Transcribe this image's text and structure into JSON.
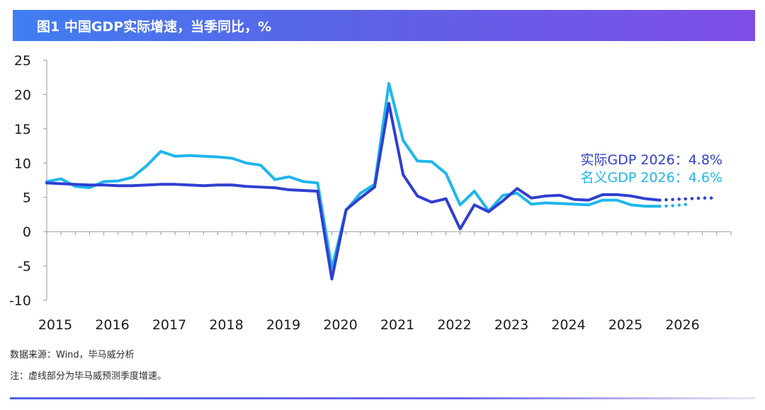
{
  "header": {
    "title": "图1 中国GDP实际增速，当季同比，%"
  },
  "chart_data": {
    "type": "line",
    "title": "图1 中国GDP实际增速，当季同比，%",
    "ylim": [
      -10,
      25
    ],
    "yticks": [
      "25",
      "20",
      "15",
      "10",
      "5",
      "0",
      "-5",
      "-10"
    ],
    "ytick_values": [
      25,
      20,
      15,
      10,
      5,
      0,
      -5,
      -10
    ],
    "x_years": [
      "2015",
      "2016",
      "2017",
      "2018",
      "2019",
      "2020",
      "2021",
      "2022",
      "2023",
      "2024",
      "2025",
      "2026"
    ],
    "x_year_values": [
      2015,
      2016,
      2017,
      2018,
      2019,
      2020,
      2021,
      2022,
      2023,
      2024,
      2025,
      2026
    ],
    "xlim": [
      2015,
      2027
    ],
    "series": [
      {
        "name": "实际GDP",
        "color": "#2f3fd1",
        "x": [
          2015.0,
          2015.25,
          2015.5,
          2015.75,
          2016.0,
          2016.25,
          2016.5,
          2016.75,
          2017.0,
          2017.25,
          2017.5,
          2017.75,
          2018.0,
          2018.25,
          2018.5,
          2018.75,
          2019.0,
          2019.25,
          2019.5,
          2019.75,
          2020.0,
          2020.25,
          2020.5,
          2020.75,
          2021.0,
          2021.25,
          2021.5,
          2021.75,
          2022.0,
          2022.25,
          2022.5,
          2022.75,
          2023.0,
          2023.25,
          2023.5,
          2023.75,
          2024.0,
          2024.25,
          2024.5,
          2024.75,
          2025.0,
          2025.25,
          2025.5,
          2025.75
        ],
        "values": [
          7.1,
          7.0,
          6.9,
          6.8,
          6.8,
          6.7,
          6.7,
          6.8,
          6.9,
          6.9,
          6.8,
          6.7,
          6.8,
          6.8,
          6.6,
          6.5,
          6.4,
          6.1,
          6.0,
          5.9,
          -6.9,
          3.2,
          4.9,
          6.5,
          18.7,
          8.3,
          5.2,
          4.3,
          4.8,
          0.4,
          3.9,
          2.9,
          4.5,
          6.3,
          4.9,
          5.2,
          5.3,
          4.7,
          4.6,
          5.4,
          5.4,
          5.2,
          4.8,
          4.6
        ],
        "forecast": {
          "x": [
            2026.0,
            2026.25,
            2026.5,
            2026.75
          ],
          "values": [
            4.7,
            4.8,
            4.9,
            4.9
          ]
        },
        "forecast_label": "实际GDP 2026：4.8%"
      },
      {
        "name": "名义GDP",
        "color": "#1fb6ec",
        "x": [
          2015.0,
          2015.25,
          2015.5,
          2015.75,
          2016.0,
          2016.25,
          2016.5,
          2016.75,
          2017.0,
          2017.25,
          2017.5,
          2017.75,
          2018.0,
          2018.25,
          2018.5,
          2018.75,
          2019.0,
          2019.25,
          2019.5,
          2019.75,
          2020.0,
          2020.25,
          2020.5,
          2020.75,
          2021.0,
          2021.25,
          2021.5,
          2021.75,
          2022.0,
          2022.25,
          2022.5,
          2022.75,
          2023.0,
          2023.25,
          2023.5,
          2023.75,
          2024.0,
          2024.25,
          2024.5,
          2024.75,
          2025.0,
          2025.25,
          2025.5,
          2025.75
        ],
        "values": [
          7.3,
          7.7,
          6.6,
          6.4,
          7.3,
          7.4,
          7.9,
          9.6,
          11.7,
          11.0,
          11.1,
          11.0,
          10.9,
          10.7,
          10.0,
          9.7,
          7.6,
          8.0,
          7.3,
          7.1,
          -5.3,
          3.1,
          5.6,
          6.9,
          21.6,
          13.3,
          10.3,
          10.2,
          8.5,
          3.9,
          5.9,
          3.0,
          5.3,
          5.6,
          4.0,
          4.2,
          4.1,
          4.0,
          3.9,
          4.6,
          4.6,
          3.9,
          3.7,
          3.7
        ],
        "forecast": {
          "x": [
            2026.0,
            2026.25
          ],
          "values": [
            3.8,
            4.0
          ]
        },
        "forecast_label": "名义GDP 2026：4.6%"
      }
    ]
  },
  "footer": {
    "source": "数据来源：Wind，毕马威分析",
    "note": "注：虚线部分为毕马威预测季度增速。"
  }
}
